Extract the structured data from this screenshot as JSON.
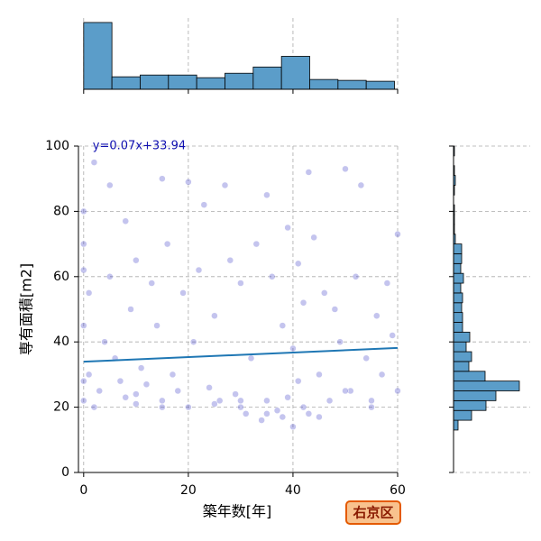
{
  "chart_data": {
    "type": "jointplot",
    "xlabel": "築年数[年]",
    "ylabel": "専有面積[m2]",
    "badge": "右京区",
    "x": [
      0,
      0,
      0,
      0,
      0,
      0,
      1,
      1,
      2,
      3,
      4,
      5,
      5,
      6,
      7,
      8,
      9,
      10,
      10,
      11,
      12,
      13,
      14,
      15,
      15,
      16,
      17,
      18,
      19,
      20,
      20,
      21,
      22,
      23,
      24,
      25,
      26,
      27,
      28,
      29,
      30,
      30,
      31,
      32,
      33,
      34,
      35,
      35,
      36,
      37,
      38,
      38,
      39,
      39,
      40,
      40,
      41,
      41,
      42,
      42,
      43,
      43,
      44,
      45,
      46,
      47,
      48,
      49,
      50,
      51,
      52,
      53,
      54,
      55,
      56,
      57,
      58,
      59,
      60,
      60,
      2,
      8,
      15,
      25,
      35,
      45,
      55,
      10,
      30,
      50
    ],
    "y": [
      22,
      28,
      45,
      62,
      70,
      80,
      30,
      55,
      95,
      25,
      40,
      60,
      88,
      35,
      28,
      77,
      50,
      24,
      65,
      32,
      27,
      58,
      45,
      22,
      90,
      70,
      30,
      25,
      55,
      20,
      89,
      40,
      62,
      82,
      26,
      48,
      22,
      88,
      65,
      24,
      20,
      58,
      18,
      35,
      70,
      16,
      85,
      22,
      60,
      19,
      17,
      45,
      23,
      75,
      14,
      38,
      28,
      64,
      20,
      52,
      92,
      18,
      72,
      30,
      55,
      22,
      50,
      40,
      93,
      25,
      60,
      88,
      35,
      22,
      48,
      30,
      58,
      42,
      25,
      73,
      20,
      23,
      20,
      21,
      18,
      17,
      20,
      21,
      22,
      25
    ],
    "point_color": "#3a3ac8",
    "xlim": [
      -1,
      60
    ],
    "ylim": [
      0,
      100
    ],
    "xticks": [
      0,
      20,
      40,
      60
    ],
    "yticks": [
      0,
      20,
      40,
      60,
      80,
      100
    ],
    "grid": true,
    "regression": {
      "slope": 0.07,
      "intercept": 33.94,
      "label": "y=0.07x+33.94",
      "color": "#1f77b4",
      "label_color": "#1010b0"
    },
    "hist_color": "#5b9dc9",
    "x_hist": {
      "bins": [
        0,
        5.4,
        10.8,
        16.2,
        21.6,
        27,
        32.4,
        37.8,
        43.2,
        48.6,
        54,
        59.4
      ],
      "counts": [
        75,
        14,
        16,
        16,
        13,
        18,
        25,
        37,
        11,
        10,
        9
      ],
      "ylim": [
        0,
        80
      ]
    },
    "y_hist": {
      "bins": [
        13,
        16,
        19,
        22,
        25,
        28,
        31,
        34,
        37,
        40,
        43,
        46,
        49,
        52,
        55,
        58,
        61,
        64,
        67,
        70,
        73,
        76,
        79,
        82,
        85,
        88,
        91,
        94,
        97,
        100
      ],
      "counts": [
        5,
        20,
        36,
        47,
        73,
        35,
        17,
        20,
        14,
        18,
        10,
        10,
        9,
        10,
        8,
        11,
        8,
        9,
        9,
        2,
        1,
        1,
        1,
        0,
        1,
        2,
        1,
        0,
        1
      ],
      "xlim": [
        0,
        85
      ]
    }
  }
}
